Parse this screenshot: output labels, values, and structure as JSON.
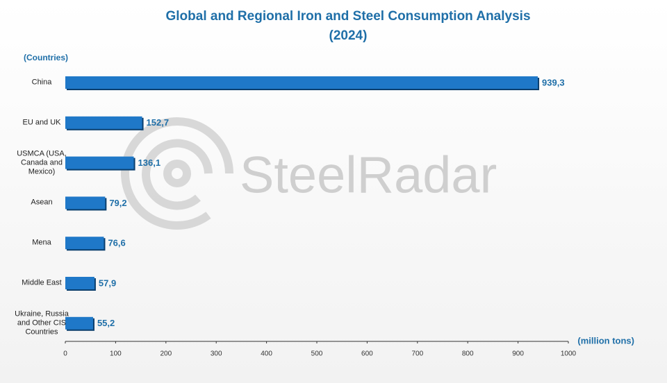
{
  "chart_data": {
    "type": "hbar",
    "title": "Global and Regional Iron and Steel Consumption Analysis",
    "subtitle": "(2024)",
    "y_label": "(Countries)",
    "x_label": "(million tons)",
    "watermark": "SteelRadar",
    "categories": [
      "China",
      "EU and UK",
      "USMCA (USA, Canada and Mexico)",
      "Asean",
      "Mena",
      "Middle East",
      "Ukraine, Russia and Other CIS Countries"
    ],
    "values": [
      939.3,
      152.7,
      136.1,
      79.2,
      76.6,
      57.9,
      55.2
    ],
    "value_labels": [
      "939,3",
      "152,7",
      "136,1",
      "79,2",
      "76,6",
      "57,9",
      "55,2"
    ],
    "color": "#1f78c8",
    "xlim": [
      0,
      1000
    ],
    "xticks": [
      0,
      100,
      200,
      300,
      400,
      500,
      600,
      700,
      800,
      900,
      1000
    ]
  }
}
